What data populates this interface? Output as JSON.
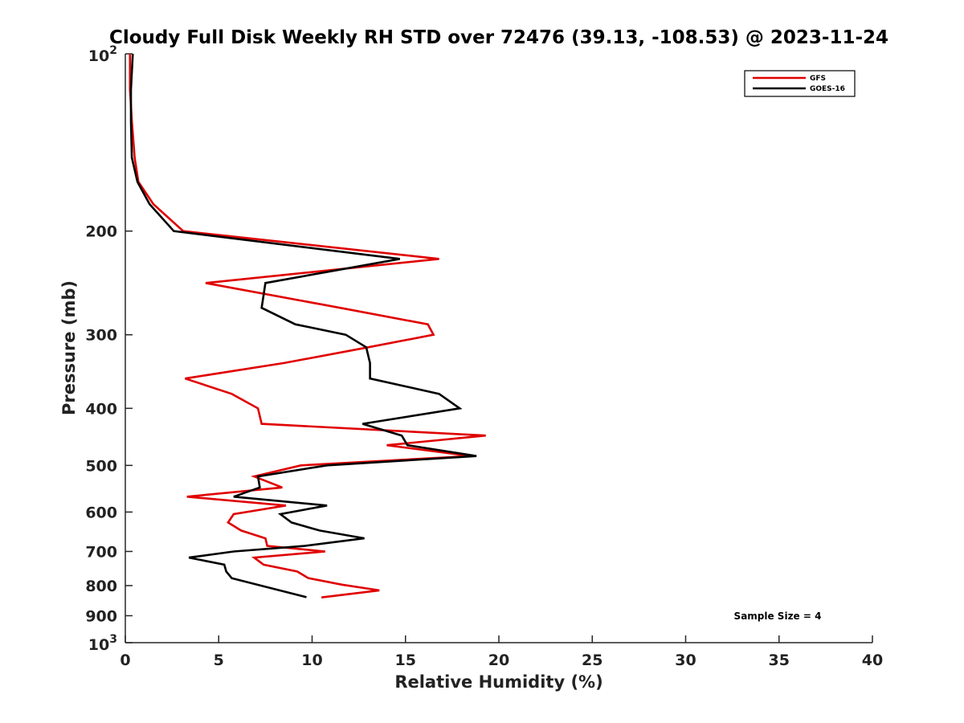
{
  "chart_data": {
    "type": "line",
    "title": "Cloudy Full Disk Weekly RH STD over 72476 (39.13, -108.53) @ 2023-11-24",
    "xlabel": "Relative Humidity (%)",
    "ylabel": "Pressure (mb)",
    "xlim": [
      0,
      40
    ],
    "ylim": [
      100,
      1000
    ],
    "y_scale": "log",
    "y_reversed": true,
    "grid": false,
    "legend_position": "top-right",
    "x_ticks": [
      0,
      5,
      10,
      15,
      20,
      25,
      30,
      35,
      40
    ],
    "x_tick_labels": [
      "0",
      "5",
      "10",
      "15",
      "20",
      "25",
      "30",
      "35",
      "40"
    ],
    "y_ticks": [
      {
        "value": 100,
        "base": "10",
        "exp": "2"
      },
      {
        "value": 200,
        "label": "200"
      },
      {
        "value": 300,
        "label": "300"
      },
      {
        "value": 400,
        "label": "400"
      },
      {
        "value": 500,
        "label": "500"
      },
      {
        "value": 600,
        "label": "600"
      },
      {
        "value": 700,
        "label": "700"
      },
      {
        "value": 800,
        "label": "800"
      },
      {
        "value": 900,
        "label": "900"
      },
      {
        "value": 1000,
        "base": "10",
        "exp": "3"
      }
    ],
    "annotation": "Sample Size = 4",
    "series": [
      {
        "name": "GFS",
        "color": "#e00000",
        "points": [
          [
            0.25,
            100
          ],
          [
            0.25,
            115
          ],
          [
            0.35,
            130
          ],
          [
            0.5,
            150
          ],
          [
            0.7,
            165
          ],
          [
            1.5,
            180
          ],
          [
            3.1,
            200
          ],
          [
            16.8,
            223
          ],
          [
            4.3,
            245
          ],
          [
            11.5,
            270
          ],
          [
            16.2,
            288
          ],
          [
            16.5,
            300
          ],
          [
            13.0,
            315
          ],
          [
            8.5,
            335
          ],
          [
            3.2,
            356
          ],
          [
            5.7,
            378
          ],
          [
            7.1,
            400
          ],
          [
            7.3,
            425
          ],
          [
            19.3,
            445
          ],
          [
            14.0,
            462
          ],
          [
            18.5,
            482
          ],
          [
            9.4,
            500
          ],
          [
            6.9,
            522
          ],
          [
            8.4,
            545
          ],
          [
            3.3,
            565
          ],
          [
            8.6,
            585
          ],
          [
            5.8,
            605
          ],
          [
            5.5,
            625
          ],
          [
            6.2,
            645
          ],
          [
            7.5,
            665
          ],
          [
            7.6,
            685
          ],
          [
            10.7,
            700
          ],
          [
            6.9,
            717
          ],
          [
            7.4,
            737
          ],
          [
            9.2,
            757
          ],
          [
            9.8,
            777
          ],
          [
            11.6,
            797
          ],
          [
            13.6,
            815
          ],
          [
            10.5,
            838
          ]
        ]
      },
      {
        "name": "GOES-16",
        "color": "#000000",
        "points": [
          [
            0.4,
            100
          ],
          [
            0.3,
            115
          ],
          [
            0.3,
            130
          ],
          [
            0.35,
            150
          ],
          [
            0.65,
            165
          ],
          [
            1.3,
            180
          ],
          [
            2.6,
            200
          ],
          [
            14.7,
            223
          ],
          [
            7.5,
            245
          ],
          [
            7.3,
            270
          ],
          [
            9.1,
            288
          ],
          [
            11.8,
            300
          ],
          [
            12.9,
            315
          ],
          [
            13.1,
            335
          ],
          [
            13.1,
            356
          ],
          [
            16.8,
            378
          ],
          [
            17.9,
            400
          ],
          [
            12.7,
            425
          ],
          [
            14.8,
            445
          ],
          [
            15.1,
            462
          ],
          [
            18.8,
            482
          ],
          [
            10.8,
            500
          ],
          [
            7.1,
            522
          ],
          [
            7.2,
            545
          ],
          [
            5.8,
            565
          ],
          [
            10.8,
            585
          ],
          [
            8.3,
            605
          ],
          [
            8.9,
            625
          ],
          [
            10.4,
            645
          ],
          [
            12.8,
            665
          ],
          [
            9.6,
            685
          ],
          [
            5.8,
            700
          ],
          [
            3.4,
            717
          ],
          [
            5.3,
            737
          ],
          [
            5.4,
            757
          ],
          [
            5.7,
            777
          ],
          [
            9.7,
            837
          ]
        ]
      }
    ]
  }
}
